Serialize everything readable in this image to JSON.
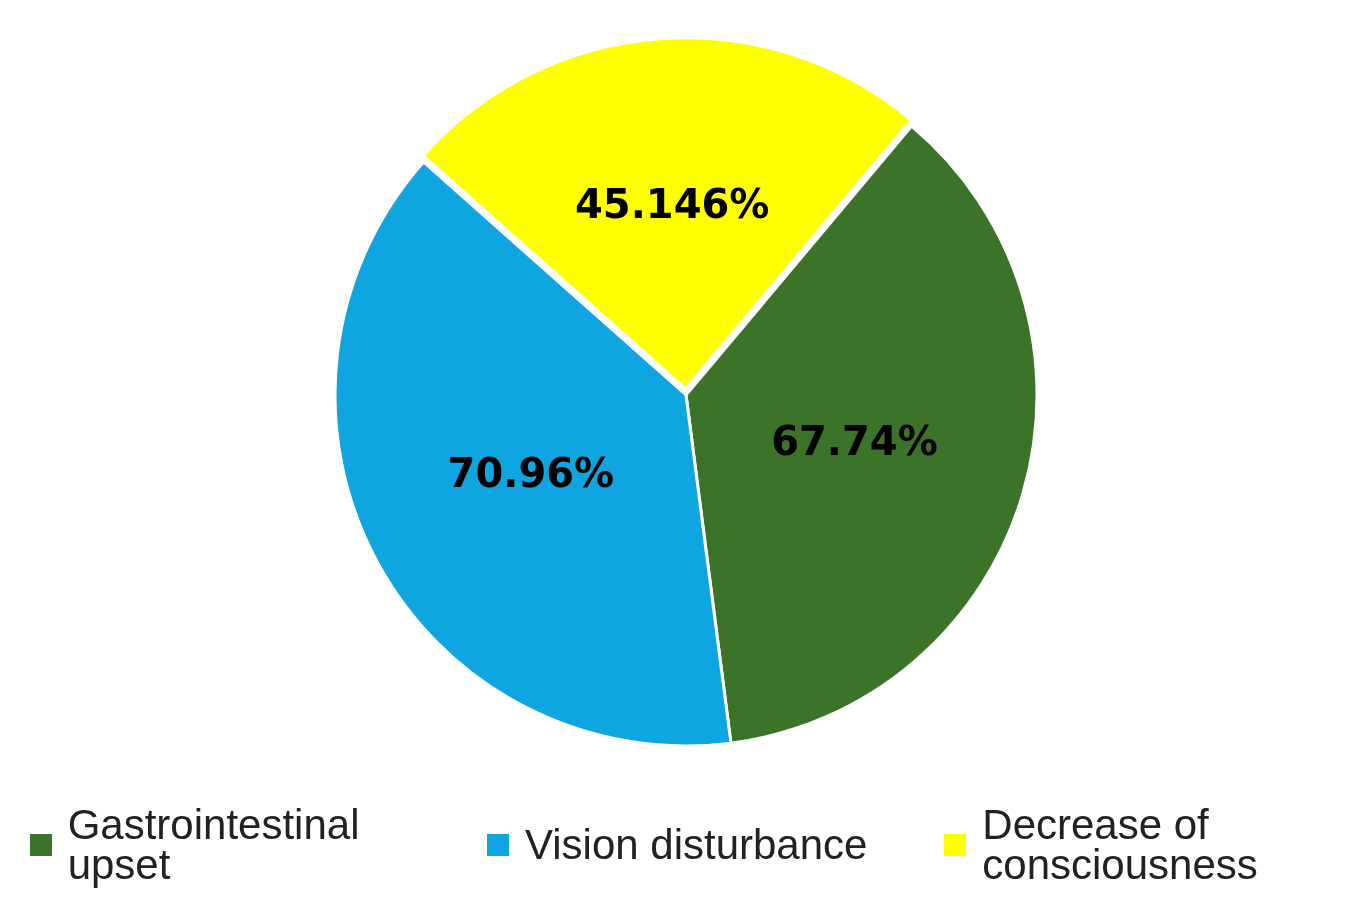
{
  "chart_data": {
    "type": "pie",
    "categories": [
      "Gastrointestinal upset",
      "Vision disturbance",
      "Decrease of consciousness"
    ],
    "values": [
      67.74,
      70.96,
      45.146
    ],
    "colors": [
      "#3b7328",
      "#0ea5e0",
      "#ffff00"
    ],
    "value_labels": [
      "67.74%",
      "70.96%",
      "45.146%"
    ],
    "legend": "bottom"
  }
}
